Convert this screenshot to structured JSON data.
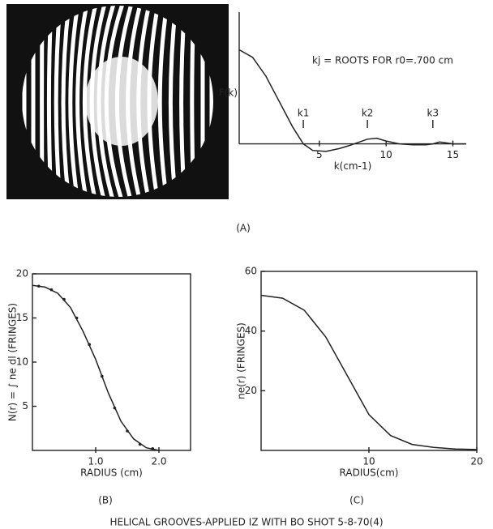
{
  "charts": [
    {
      "type": "line",
      "ylabel": "F(k)",
      "xlabel": "k(cm-1)",
      "annotation": "kj = ROOTS FOR r0=.700 cm",
      "x": [
        -1,
        0,
        1,
        2,
        3,
        3.8,
        4.5,
        5.5,
        6.5,
        7.2,
        8,
        8.6,
        9.3,
        10,
        11,
        12,
        13,
        13.5,
        14,
        14.5,
        15,
        15.5,
        16
      ],
      "values": [
        1.0,
        0.92,
        0.72,
        0.45,
        0.18,
        0,
        -0.07,
        -0.08,
        -0.05,
        -0.02,
        0.02,
        0.05,
        0.06,
        0.03,
        0,
        -0.01,
        -0.01,
        0,
        0.02,
        0.01,
        0,
        0,
        0
      ],
      "xlim": [
        -1,
        16
      ],
      "ylim": [
        -0.15,
        1.4
      ],
      "xticks": [
        5,
        10,
        15
      ],
      "roots": [
        {
          "label": "k1",
          "value": 3.8
        },
        {
          "label": "k2",
          "value": 8.6
        },
        {
          "label": "k3",
          "value": 13.5
        }
      ]
    },
    {
      "type": "line",
      "ylabel": "N(r) = ∫ ne dl (FRINGES)",
      "xlabel": "RADIUS (cm)",
      "x": [
        0,
        0.2,
        0.4,
        0.6,
        0.8,
        1.0,
        1.2,
        1.4,
        1.6,
        1.8,
        2.0
      ],
      "values": [
        18.7,
        18.5,
        17.8,
        16.2,
        13.5,
        10.3,
        6.5,
        3.3,
        1.3,
        0.3,
        0
      ],
      "points": {
        "x": [
          0.1,
          0.3,
          0.5,
          0.7,
          0.9,
          1.1,
          1.3,
          1.5,
          1.7,
          1.9
        ],
        "values": [
          18.6,
          18.2,
          17.1,
          15,
          12,
          8.4,
          4.8,
          2.2,
          0.7,
          0.2
        ]
      },
      "xlim": [
        0,
        2.5
      ],
      "ylim": [
        0,
        20
      ],
      "xticks": [
        {
          "value": 1,
          "label": "1.0"
        },
        {
          "value": 2,
          "label": "2.0"
        }
      ],
      "yticks": [
        5,
        10,
        15,
        20
      ]
    },
    {
      "type": "line",
      "ylabel": "ne(r) (FRINGES)",
      "xlabel": "RADIUS(cm)",
      "x": [
        0,
        2,
        4,
        6,
        8,
        10,
        12,
        14,
        16,
        18,
        20
      ],
      "values": [
        52,
        51,
        47,
        38,
        25,
        12,
        5,
        2,
        1,
        0.5,
        0.3
      ],
      "xlim": [
        0,
        20
      ],
      "ylim": [
        0,
        60
      ],
      "xticks": [
        10,
        20
      ],
      "yticks": [
        20,
        40,
        60
      ]
    }
  ],
  "captions": {
    "a": "(A)",
    "b": "(B)",
    "c": "(C)",
    "footer": "HELICAL GROOVES-APPLIED IZ WITH BO SHOT 5-8-70(4)"
  }
}
